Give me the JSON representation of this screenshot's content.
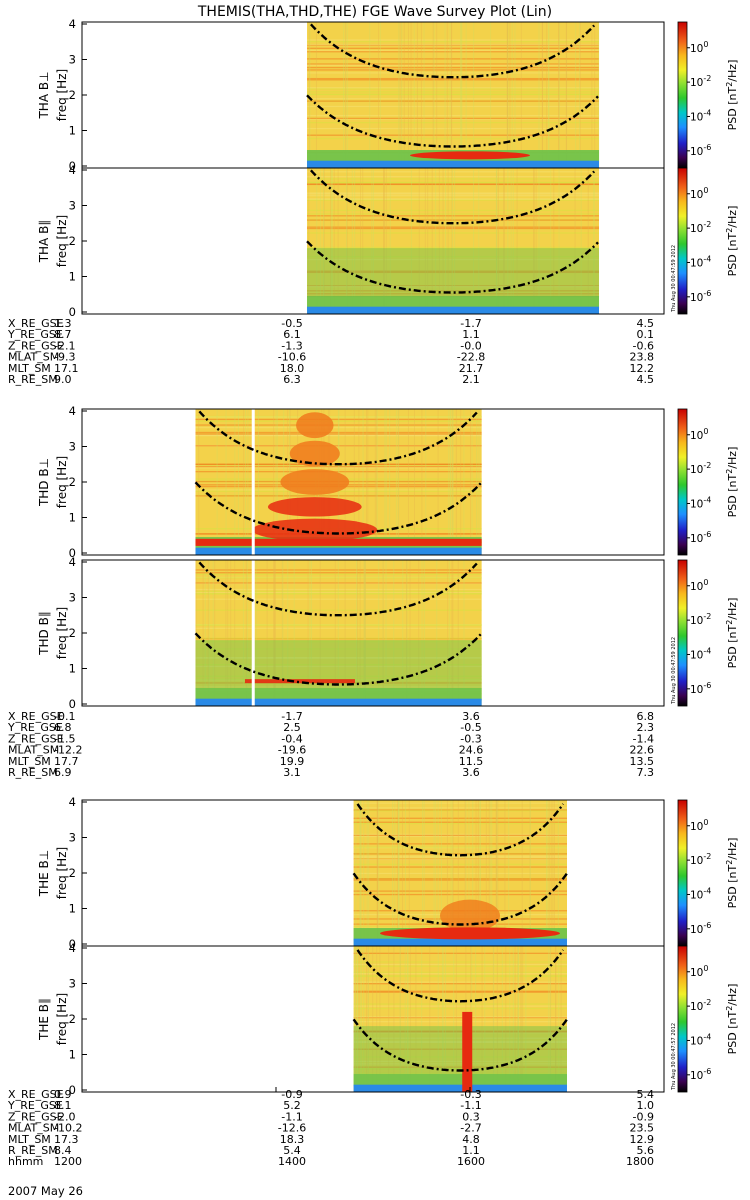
{
  "title": "THEMIS(THA,THD,THE) FGE Wave Survey Plot (Lin)",
  "colors": {
    "spec_bg": "#f3d24a",
    "spec_hot": "#e62a10",
    "spec_orange": "#f07a1c",
    "spec_green": "#6cc24a",
    "spec_blue": "#2a8ae6",
    "curve": "#000000",
    "gap": "#ffffff"
  },
  "colorbar": {
    "label": "PSD [nT²/Hz]",
    "label_base": "PSD [nT",
    "label_sup": "2",
    "label_tail": "/Hz]",
    "ticks": [
      {
        "base": "10",
        "exp": "0"
      },
      {
        "base": "10",
        "exp": "-2"
      },
      {
        "base": "10",
        "exp": "-4"
      },
      {
        "base": "10",
        "exp": "-6"
      }
    ],
    "stamps": [
      "Thu Aug 30 00:47:59 2012",
      "Thu Aug 30 00:47:59 2012",
      "Thu Aug 30 00:47:57 2012"
    ]
  },
  "chart_data": {
    "type": "heatmap",
    "title": "THEMIS(THA,THD,THE) FGE Wave Survey Plot (Lin)",
    "ylabel": "freq [Hz]",
    "ylim": [
      0,
      4
    ],
    "yticks": [
      "0",
      "1",
      "2",
      "3",
      "4"
    ],
    "xlim": [
      1200,
      1800
    ],
    "x_ticks": [
      1200,
      1400,
      1600,
      1800
    ],
    "colorbar_log10_range": [
      -7,
      1.5
    ],
    "groups": [
      {
        "probe": "THA",
        "data_time_range": [
          1432,
          1733
        ],
        "panels": [
          {
            "label": "THA B⊥",
            "name": "tha-bperp"
          },
          {
            "label": "THA B∥",
            "name": "tha-bpar"
          }
        ],
        "orbit": {
          "rows": [
            {
              "label": "X_RE_GSE",
              "values": [
                "1.3",
                "-0.5",
                "-1.7",
                "4.5"
              ]
            },
            {
              "label": "Y_RE_GSE",
              "values": [
                "8.7",
                "6.1",
                "1.1",
                "0.1"
              ]
            },
            {
              "label": "Z_RE_GSE",
              "values": [
                "-2.1",
                "-1.3",
                "-0.0",
                "-0.6"
              ]
            },
            {
              "label": "MLAT_SM",
              "values": [
                "-9.3",
                "-10.6",
                "-22.8",
                "23.8"
              ]
            },
            {
              "label": "MLT_SM",
              "values": [
                "17.1",
                "18.0",
                "21.7",
                "12.2"
              ]
            },
            {
              "label": "R_RE_SM",
              "values": [
                "9.0",
                "6.3",
                "2.1",
                "4.5"
              ]
            }
          ]
        }
      },
      {
        "probe": "THD",
        "data_time_range": [
          1317,
          1612
        ],
        "panels": [
          {
            "label": "THD B⊥",
            "name": "thd-bperp"
          },
          {
            "label": "THD B∥",
            "name": "thd-bpar"
          }
        ],
        "orbit": {
          "rows": [
            {
              "label": "X_RE_GSE",
              "values": [
                "-0.1",
                "-1.7",
                "3.6",
                "6.8"
              ]
            },
            {
              "label": "Y_RE_GSE",
              "values": [
                "6.8",
                "2.5",
                "-0.5",
                "2.3"
              ]
            },
            {
              "label": "Z_RE_GSE",
              "values": [
                "-1.5",
                "-0.4",
                "-0.3",
                "-1.4"
              ]
            },
            {
              "label": "MLAT_SM",
              "values": [
                "-12.2",
                "-19.6",
                "24.6",
                "22.6"
              ]
            },
            {
              "label": "MLT_SM",
              "values": [
                "17.7",
                "19.9",
                "11.5",
                "13.5"
              ]
            },
            {
              "label": "R_RE_SM",
              "values": [
                "6.9",
                "3.1",
                "3.6",
                "7.3"
              ]
            }
          ]
        }
      },
      {
        "probe": "THE",
        "data_time_range": [
          1480,
          1700
        ],
        "panels": [
          {
            "label": "THE B⊥",
            "name": "the-bperp"
          },
          {
            "label": "THE B∥",
            "name": "the-bpar"
          }
        ],
        "orbit": {
          "rows": [
            {
              "label": "X_RE_GSE",
              "values": [
                "0.9",
                "-0.9",
                "-0.3",
                "5.4"
              ]
            },
            {
              "label": "Y_RE_GSE",
              "values": [
                "8.1",
                "5.2",
                "-1.1",
                "1.0"
              ]
            },
            {
              "label": "Z_RE_GSE",
              "values": [
                "-2.0",
                "-1.1",
                "0.3",
                "-0.9"
              ]
            },
            {
              "label": "MLAT_SM",
              "values": [
                "-10.2",
                "-12.6",
                "-2.7",
                "23.5"
              ]
            },
            {
              "label": "MLT_SM",
              "values": [
                "17.3",
                "18.3",
                "4.8",
                "12.9"
              ]
            },
            {
              "label": "R_RE_SM",
              "values": [
                "8.4",
                "5.4",
                "1.1",
                "5.6"
              ]
            },
            {
              "label": "hhmm",
              "values": [
                "1200",
                "1400",
                "1600",
                "1800"
              ]
            }
          ]
        }
      }
    ],
    "date_label": "2007 May 26"
  }
}
